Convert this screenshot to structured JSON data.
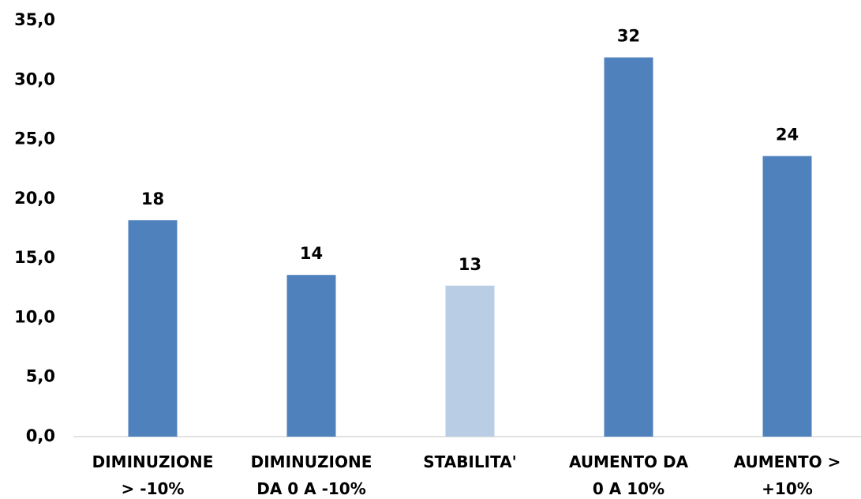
{
  "chart_data": {
    "type": "bar",
    "categories": [
      "DIMINUZIONE\n> -10%",
      "DIMINUZIONE\nDA 0 A -10%",
      "STABILITA'",
      "AUMENTO DA\n0 A 10%",
      "AUMENTO >\n+10%"
    ],
    "values": [
      18.2,
      13.6,
      12.7,
      31.9,
      23.6
    ],
    "value_labels": [
      "18",
      "14",
      "13",
      "32",
      "24"
    ],
    "colors": [
      "#4f81bd",
      "#4f81bd",
      "#b9cde5",
      "#4f81bd",
      "#4f81bd"
    ],
    "ylim": [
      0,
      35
    ],
    "yticks": [
      {
        "value": 0,
        "label": "0,0"
      },
      {
        "value": 5,
        "label": "5,0"
      },
      {
        "value": 10,
        "label": "10,0"
      },
      {
        "value": 15,
        "label": "15,0"
      },
      {
        "value": 20,
        "label": "20,0"
      },
      {
        "value": 25,
        "label": "25,0"
      },
      {
        "value": 30,
        "label": "30,0"
      },
      {
        "value": 35,
        "label": "35,0"
      }
    ],
    "grid": false
  }
}
